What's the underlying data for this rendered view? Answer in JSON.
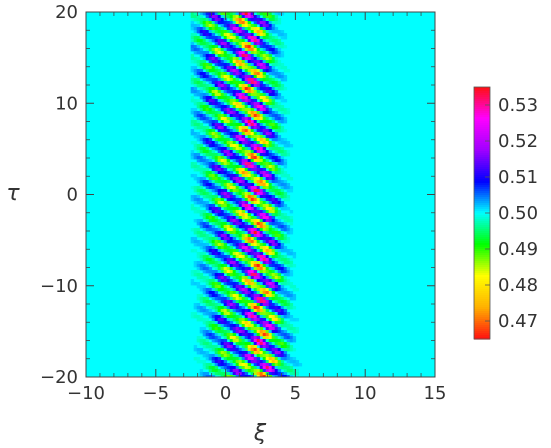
{
  "chart_data": {
    "type": "heatmap",
    "title": "",
    "xlabel": "ξ",
    "ylabel": "τ",
    "xlim": [
      -10,
      15
    ],
    "ylim": [
      -20,
      20
    ],
    "x_major_ticks": [
      -10,
      -5,
      0,
      5,
      10,
      15
    ],
    "x_tick_labels": [
      "−10",
      "−5",
      "0",
      "5",
      "10",
      "15"
    ],
    "y_major_ticks": [
      -20,
      -10,
      0,
      10,
      20
    ],
    "y_tick_labels": [
      "−20",
      "−10",
      "0",
      "10",
      "20"
    ],
    "background_value": 0.5,
    "value_range": [
      0.465,
      0.535
    ],
    "pattern": {
      "center_xi_at_tau_minus20": 2.6,
      "center_xi_at_tau_20": 1.5,
      "core_halfwidth_xi": 1.1,
      "oscillation_period_tau": 2.4,
      "amplitude_peak": 0.035,
      "stripe_tilt": "fringe stripes tilted, extending to the left of the core"
    },
    "colorbar": {
      "min": 0.465,
      "max": 0.535,
      "ticks": [
        0.47,
        0.48,
        0.49,
        0.5,
        0.51,
        0.52,
        0.53
      ],
      "tick_labels": [
        "0.47",
        "0.48",
        "0.49",
        "0.50",
        "0.51",
        "0.52",
        "0.53"
      ],
      "colors": [
        "#ff1010",
        "#ffb000",
        "#ffff00",
        "#00ff00",
        "#00ffff",
        "#0000ff",
        "#a000ff",
        "#ff00ff",
        "#ff1010"
      ],
      "placement": "right"
    }
  }
}
